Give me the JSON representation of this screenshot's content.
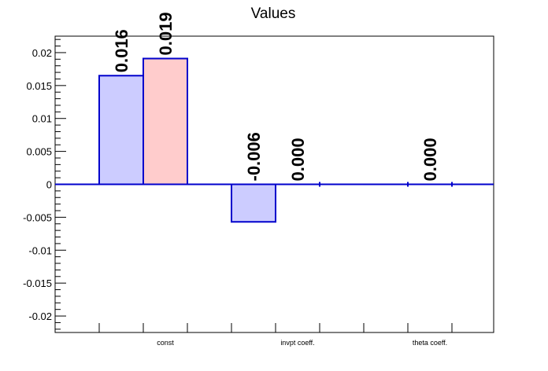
{
  "chart_data": {
    "type": "bar",
    "title": "Values",
    "categories": [
      "const",
      "invpt coeff.",
      "theta coeff."
    ],
    "series": [
      {
        "values": [
          0.0165,
          -0.0057,
          0.0
        ],
        "labels": [
          "0.016",
          "-0.006",
          ""
        ],
        "fill": "#ccccff",
        "stroke": "#0000cc"
      },
      {
        "values": [
          0.0191,
          0.0,
          0.0
        ],
        "labels": [
          "0.019",
          "0.000",
          "0.000"
        ],
        "fill": "#ffcccc",
        "stroke": "#0000cc"
      }
    ],
    "y_ticks": [
      "0.02",
      "0.015",
      "0.01",
      "0.005",
      "0",
      "-0.005",
      "-0.01",
      "-0.015",
      "-0.02"
    ],
    "ylim": [
      -0.0225,
      0.0225
    ],
    "grid": false,
    "legend": "none"
  }
}
